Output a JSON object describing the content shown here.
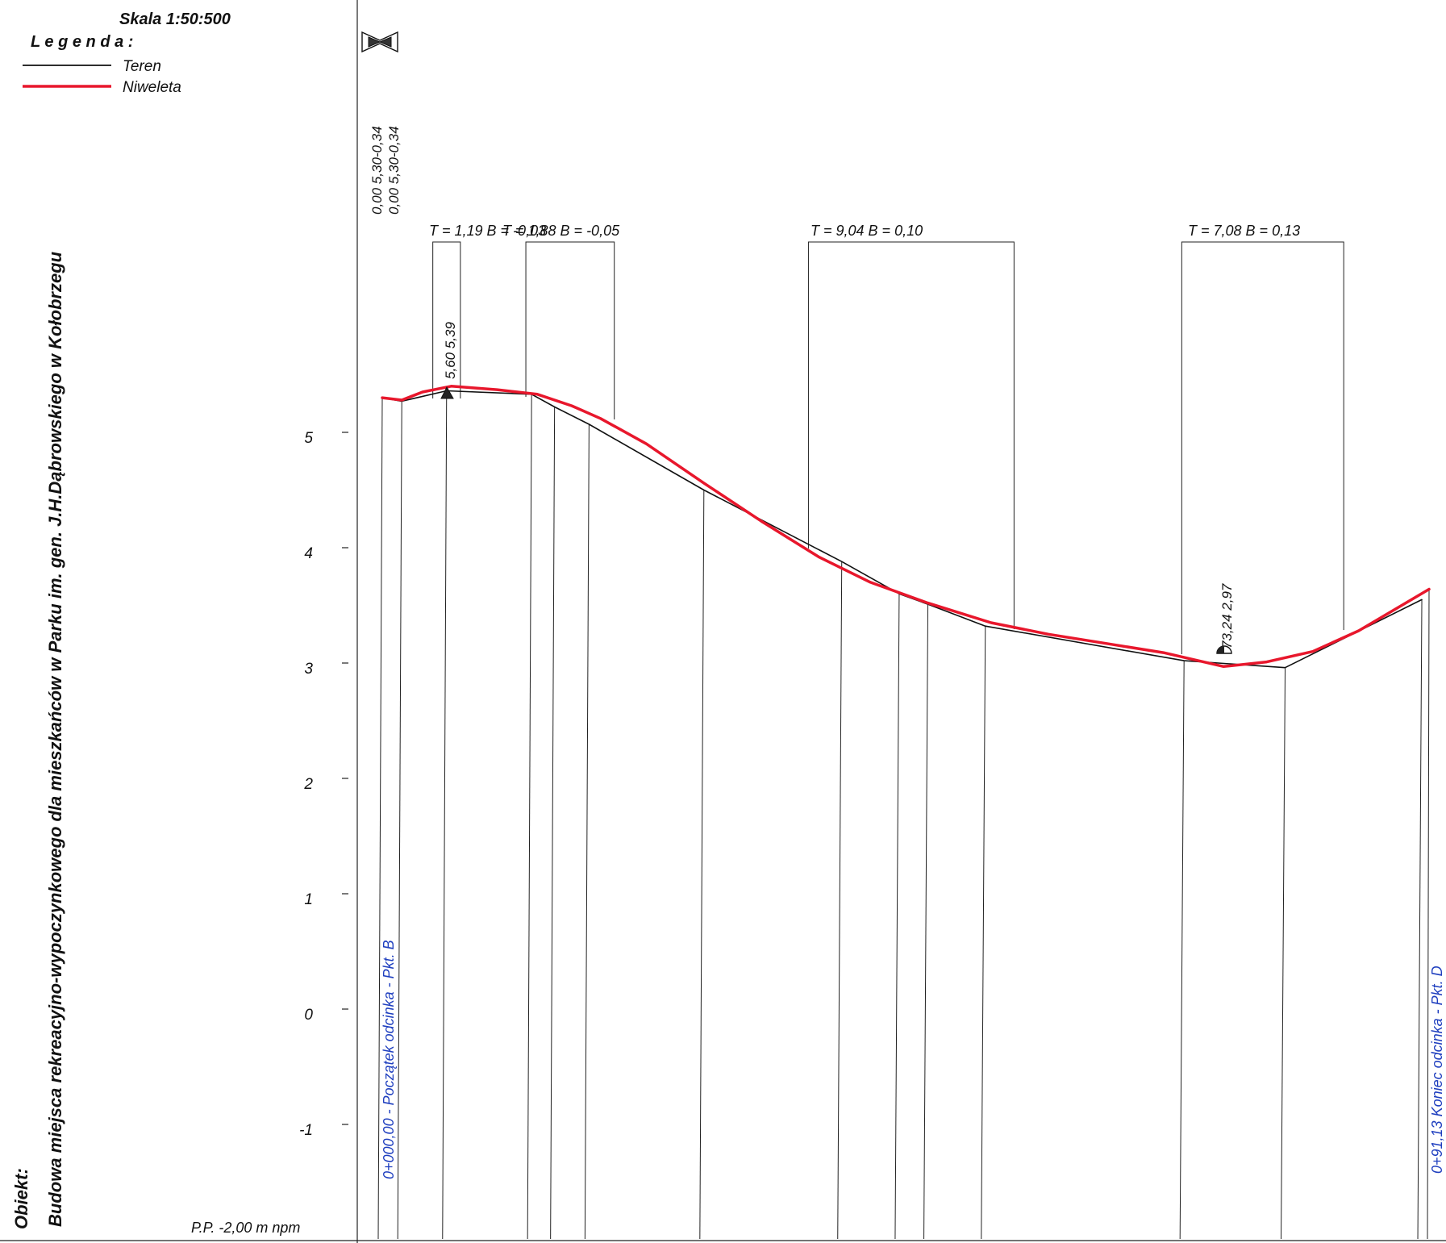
{
  "scale_label": "Skala 1:50:500",
  "legend": {
    "title": "L e g e n d a :",
    "items": [
      {
        "label": "Teren",
        "color": "#111111"
      },
      {
        "label": "Niweleta",
        "color": "#e8172c"
      }
    ]
  },
  "object_label": "Obiekt:",
  "object_name": "Budowa miejsca rekreacyjno-wypoczynkowego dla mieszkańców w Parku im. gen. J.H.Dąbrowskiego w Kołobrzegu",
  "datum_label": "P.P.  -2,00  m  npm",
  "start_labels": [
    "0,00 5,30-0,34",
    "0,00 5,30-0,34"
  ],
  "start_symbol": "bow-tie-marker",
  "curves": [
    {
      "label": "T = 1,19  B = -0,03"
    },
    {
      "label": "T = 1,88  B = -0,05"
    },
    {
      "label": "T = 9,04  B = 0,10"
    },
    {
      "label": "T = 7,08  B = 0,13"
    }
  ],
  "point_labels": [
    {
      "label": "5,60 5,39"
    },
    {
      "label": "73,24 2,97"
    }
  ],
  "station_labels": [
    {
      "label": "0+000,00 - Początek odcinka - Pkt. B",
      "color": "#1f3fbf"
    },
    {
      "label": "0+91,13 Koniec odcinka - Pkt. D",
      "color": "#1f3fbf"
    }
  ],
  "chart_data": {
    "type": "line",
    "title": "",
    "xlabel": "",
    "ylabel": "",
    "ylim": [
      -2,
      6.8
    ],
    "xlim": [
      0,
      91.13
    ],
    "y_ticks": [
      5,
      4,
      3,
      2,
      1,
      0,
      -1
    ],
    "series": [
      {
        "name": "Teren",
        "color": "#111111",
        "points": [
          [
            0,
            5.3
          ],
          [
            1.7,
            5.27
          ],
          [
            5.6,
            5.36
          ],
          [
            13.0,
            5.33
          ],
          [
            15.0,
            5.22
          ],
          [
            18.0,
            5.07
          ],
          [
            28.0,
            4.5
          ],
          [
            40.0,
            3.88
          ],
          [
            45.0,
            3.6
          ],
          [
            47.5,
            3.51
          ],
          [
            52.5,
            3.32
          ],
          [
            69.8,
            3.02
          ],
          [
            78.6,
            2.96
          ],
          [
            90.5,
            3.55
          ]
        ]
      },
      {
        "name": "Niweleta",
        "color": "#e8172c",
        "points": [
          [
            0,
            5.3
          ],
          [
            1.7,
            5.28
          ],
          [
            3.5,
            5.35
          ],
          [
            6.0,
            5.4
          ],
          [
            10.0,
            5.37
          ],
          [
            13.5,
            5.33
          ],
          [
            16.5,
            5.23
          ],
          [
            19.0,
            5.12
          ],
          [
            23.0,
            4.9
          ],
          [
            28.0,
            4.56
          ],
          [
            33.0,
            4.23
          ],
          [
            38.0,
            3.92
          ],
          [
            42.5,
            3.7
          ],
          [
            47.5,
            3.52
          ],
          [
            53.0,
            3.35
          ],
          [
            58.0,
            3.25
          ],
          [
            63.0,
            3.17
          ],
          [
            68.0,
            3.09
          ],
          [
            73.24,
            2.97
          ],
          [
            77.0,
            3.01
          ],
          [
            81.0,
            3.1
          ],
          [
            85.0,
            3.28
          ],
          [
            91.13,
            3.64
          ]
        ]
      }
    ],
    "curves": [
      {
        "T": 1.19,
        "B": -0.03
      },
      {
        "T": 1.88,
        "B": -0.05
      },
      {
        "T": 9.04,
        "B": 0.1
      },
      {
        "T": 7.08,
        "B": 0.13
      }
    ],
    "stations": [
      {
        "x": 0,
        "label": "0+000,00 - Początek odcinka - Pkt. B"
      },
      {
        "x": 91.13,
        "label": "0+91,13 Koniec odcinka - Pkt. D"
      }
    ],
    "grid": false,
    "legend_position": "top-left"
  }
}
